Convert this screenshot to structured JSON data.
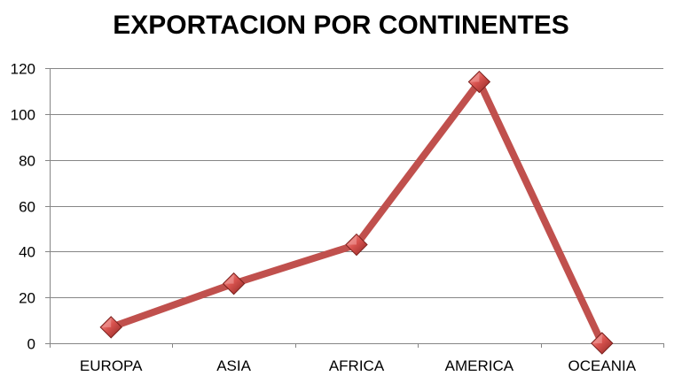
{
  "chart_data": {
    "type": "line",
    "title": "EXPORTACION POR CONTINENTES",
    "categories": [
      "EUROPA",
      "ASIA",
      "AFRICA",
      "AMERICA",
      "OCEANIA"
    ],
    "series": [
      {
        "values": [
          7,
          26,
          43,
          114,
          0
        ]
      }
    ],
    "ylim": [
      0,
      120
    ],
    "yticks": [
      0,
      20,
      40,
      60,
      80,
      100,
      120
    ],
    "xlabel": "",
    "ylabel": "",
    "grid": true,
    "legend": "none",
    "colors": {
      "line": "#c0504d",
      "marker": "#c0504d",
      "marker_highlight": "#f2a19e",
      "gridline": "#868686"
    },
    "marker": "diamond"
  }
}
